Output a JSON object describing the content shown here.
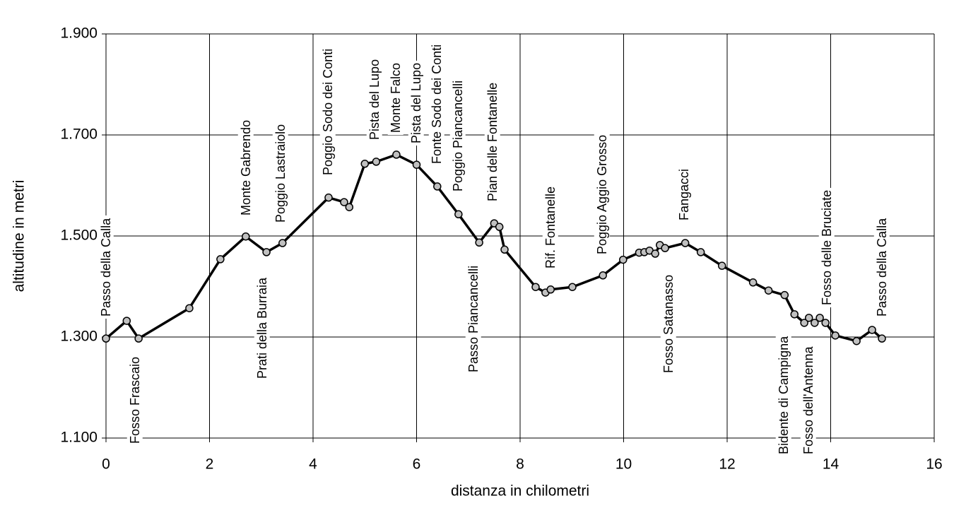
{
  "chart_data": {
    "type": "line",
    "x_label": "distanza in chilometri",
    "y_label": "altitudine  in metri",
    "x": [
      0,
      0.4,
      0.63,
      1.61,
      2.21,
      2.7,
      3.1,
      3.41,
      4.3,
      4.6,
      4.7,
      5.0,
      5.22,
      5.61,
      6.0,
      6.4,
      6.81,
      7.21,
      7.5,
      7.6,
      7.7,
      8.3,
      8.49,
      8.59,
      9.01,
      9.6,
      9.99,
      10.3,
      10.4,
      10.5,
      10.61,
      10.7,
      10.8,
      11.19,
      11.49,
      11.9,
      12.5,
      12.8,
      13.11,
      13.3,
      13.49,
      13.58,
      13.69,
      13.79,
      13.9,
      14.09,
      14.5,
      14.8,
      14.99
    ],
    "series": [
      {
        "color": "#000000",
        "marker_color": "#c0c0c0",
        "values": [
          1297,
          1332,
          1297,
          1357,
          1454,
          1499,
          1468,
          1486,
          1576,
          1567,
          1557,
          1643,
          1647,
          1661,
          1641,
          1598,
          1543,
          1487,
          1525,
          1518,
          1473,
          1399,
          1388,
          1394,
          1399,
          1422,
          1453,
          1467,
          1468,
          1471,
          1465,
          1482,
          1476,
          1486,
          1468,
          1441,
          1408,
          1392,
          1383,
          1345,
          1328,
          1338,
          1328,
          1338,
          1328,
          1303,
          1292,
          1314,
          1297
        ]
      }
    ],
    "xlim": [
      0,
      16
    ],
    "xticks": [
      0,
      2,
      4,
      6,
      8,
      10,
      12,
      14,
      16
    ],
    "ylim": [
      1100,
      1900
    ],
    "yticks": [
      {
        "value": 1100,
        "label": "1.100"
      },
      {
        "value": 1300,
        "label": "1.300"
      },
      {
        "value": 1500,
        "label": "1.500"
      },
      {
        "value": 1700,
        "label": "1.700"
      },
      {
        "value": 1900,
        "label": "1.900"
      }
    ],
    "grid": true,
    "annotations": [
      "Passo della Calla",
      "Fosso Frascaio",
      "Monte Gabrendo",
      "Poggio Lastraiolo",
      "Prati della Burraia",
      "Poggio Sodo dei Conti",
      "Pista del Lupo",
      "Monte Falco",
      "Pista del Lupo",
      "Fonte Sodo dei Conti",
      "Poggio Piancancelli",
      "Pian delle Fontanelle",
      "Passo Piancancelli",
      "Rif. Fontanelle",
      "Poggio Aggio Grosso",
      "Fosso Satanasso",
      "Fangacci",
      "Bidente di Campigna",
      "Fosso dell'Antenna",
      "Fosso delle Bruciate",
      "Passo della Calla"
    ]
  }
}
